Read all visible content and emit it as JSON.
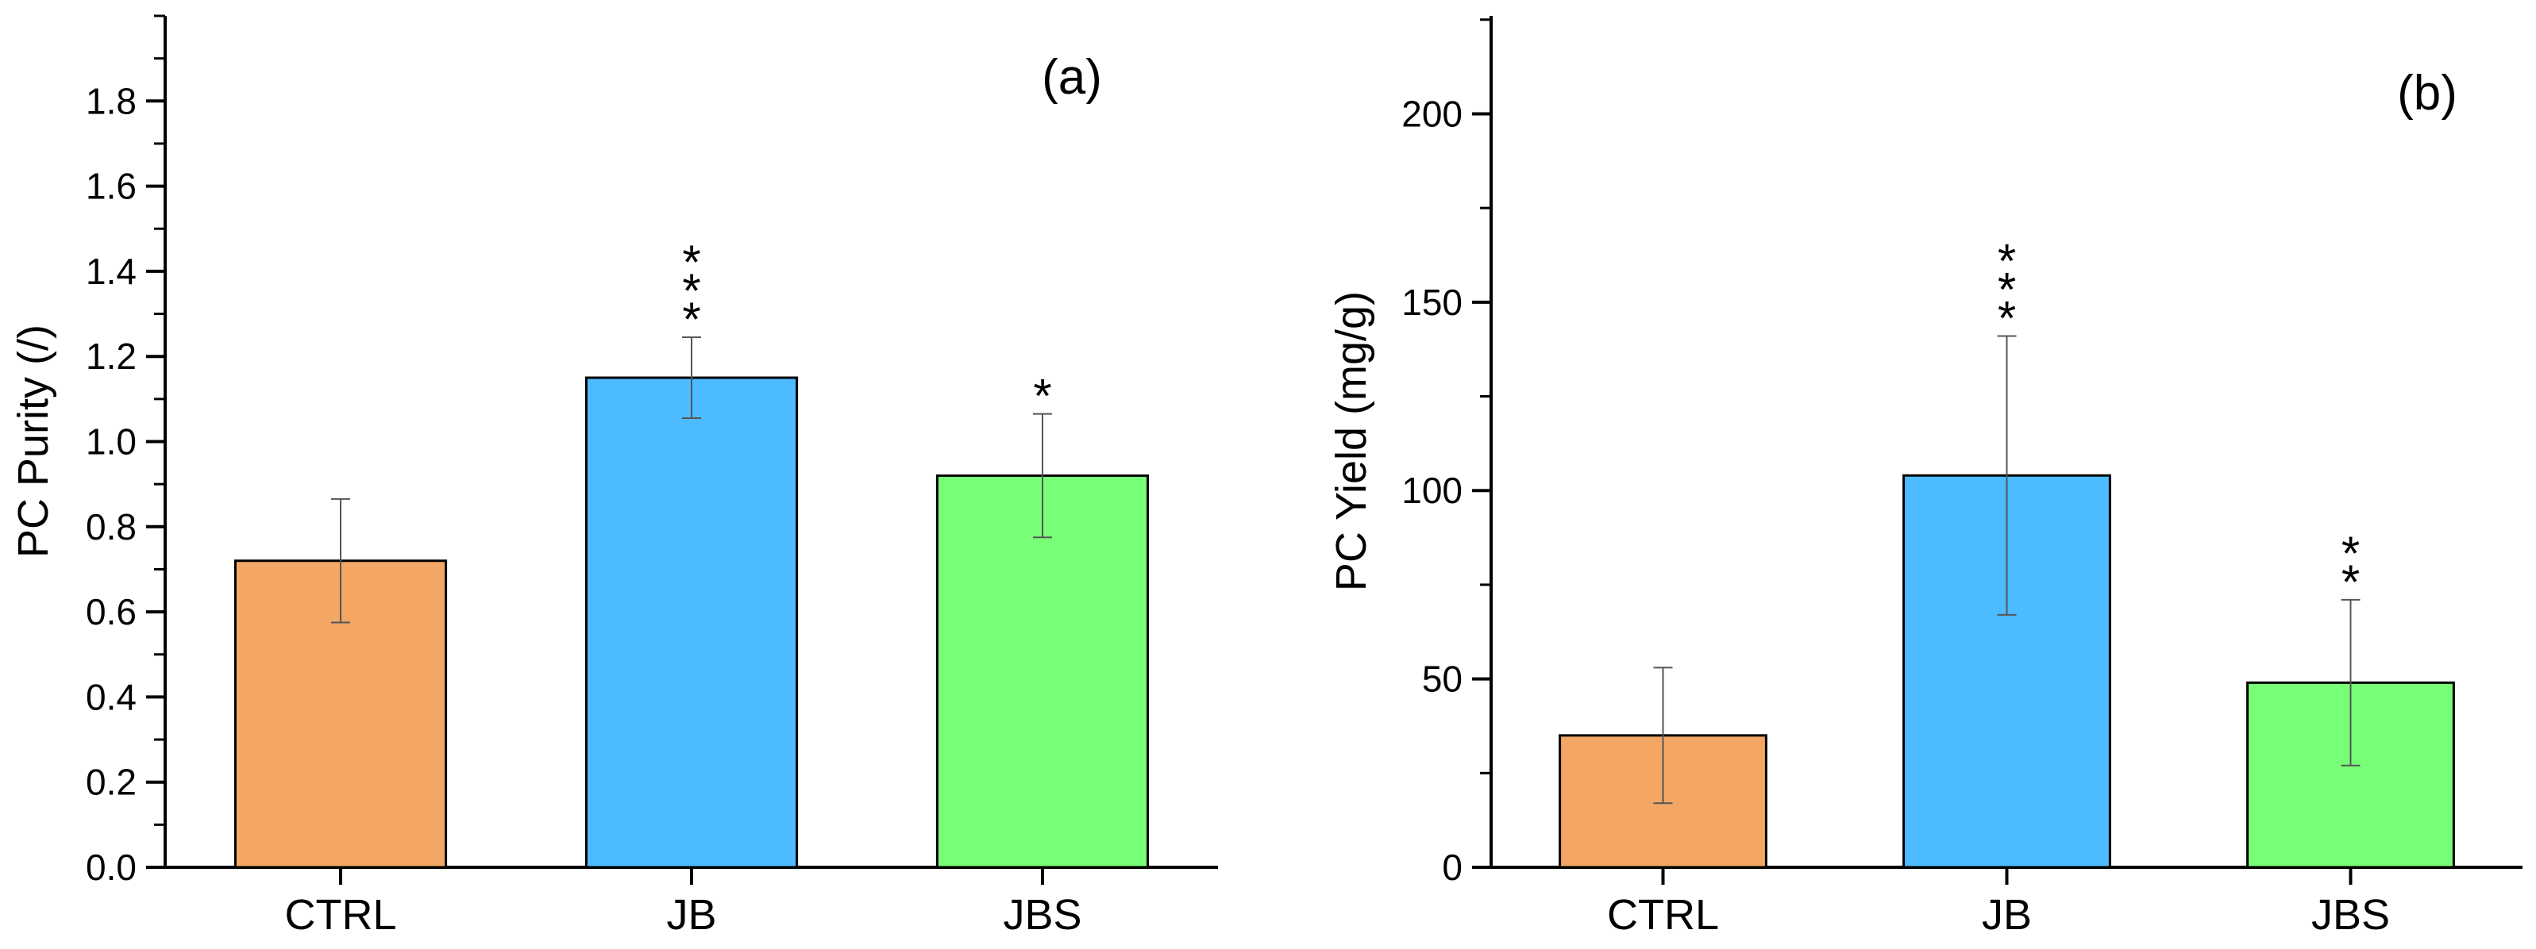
{
  "chart_data": [
    {
      "type": "bar",
      "panel_label": "(a)",
      "categories": [
        "CTRL",
        "JB",
        "JBS"
      ],
      "values": [
        0.72,
        1.15,
        0.92
      ],
      "errors": [
        0.145,
        0.095,
        0.145
      ],
      "significance": [
        "",
        "***",
        "*"
      ],
      "colors": [
        "#F4A765",
        "#4DBBFF",
        "#77FF77"
      ],
      "xlabel": "",
      "ylabel": "PC Purity (/)",
      "ylim": [
        0,
        2.0
      ],
      "yticks": [
        0.0,
        0.2,
        0.4,
        0.6,
        0.8,
        1.0,
        1.2,
        1.4,
        1.6,
        1.8
      ],
      "ytick_labels": [
        "0.0",
        "0.2",
        "0.4",
        "0.6",
        "0.8",
        "1.0",
        "1.2",
        "1.4",
        "1.6",
        "1.8"
      ],
      "grid": false
    },
    {
      "type": "bar",
      "panel_label": "(b)",
      "categories": [
        "CTRL",
        "JB",
        "JBS"
      ],
      "values": [
        35,
        104,
        49
      ],
      "errors": [
        18,
        37,
        22
      ],
      "significance": [
        "",
        "***",
        "**"
      ],
      "colors": [
        "#F4A765",
        "#4DBBFF",
        "#77FF77"
      ],
      "xlabel": "",
      "ylabel": "PC Yield (mg/g)",
      "ylim": [
        0,
        226
      ],
      "yticks": [
        0,
        50,
        100,
        150,
        200
      ],
      "ytick_labels": [
        "0",
        "50",
        "100",
        "150",
        "200"
      ],
      "grid": false
    }
  ]
}
